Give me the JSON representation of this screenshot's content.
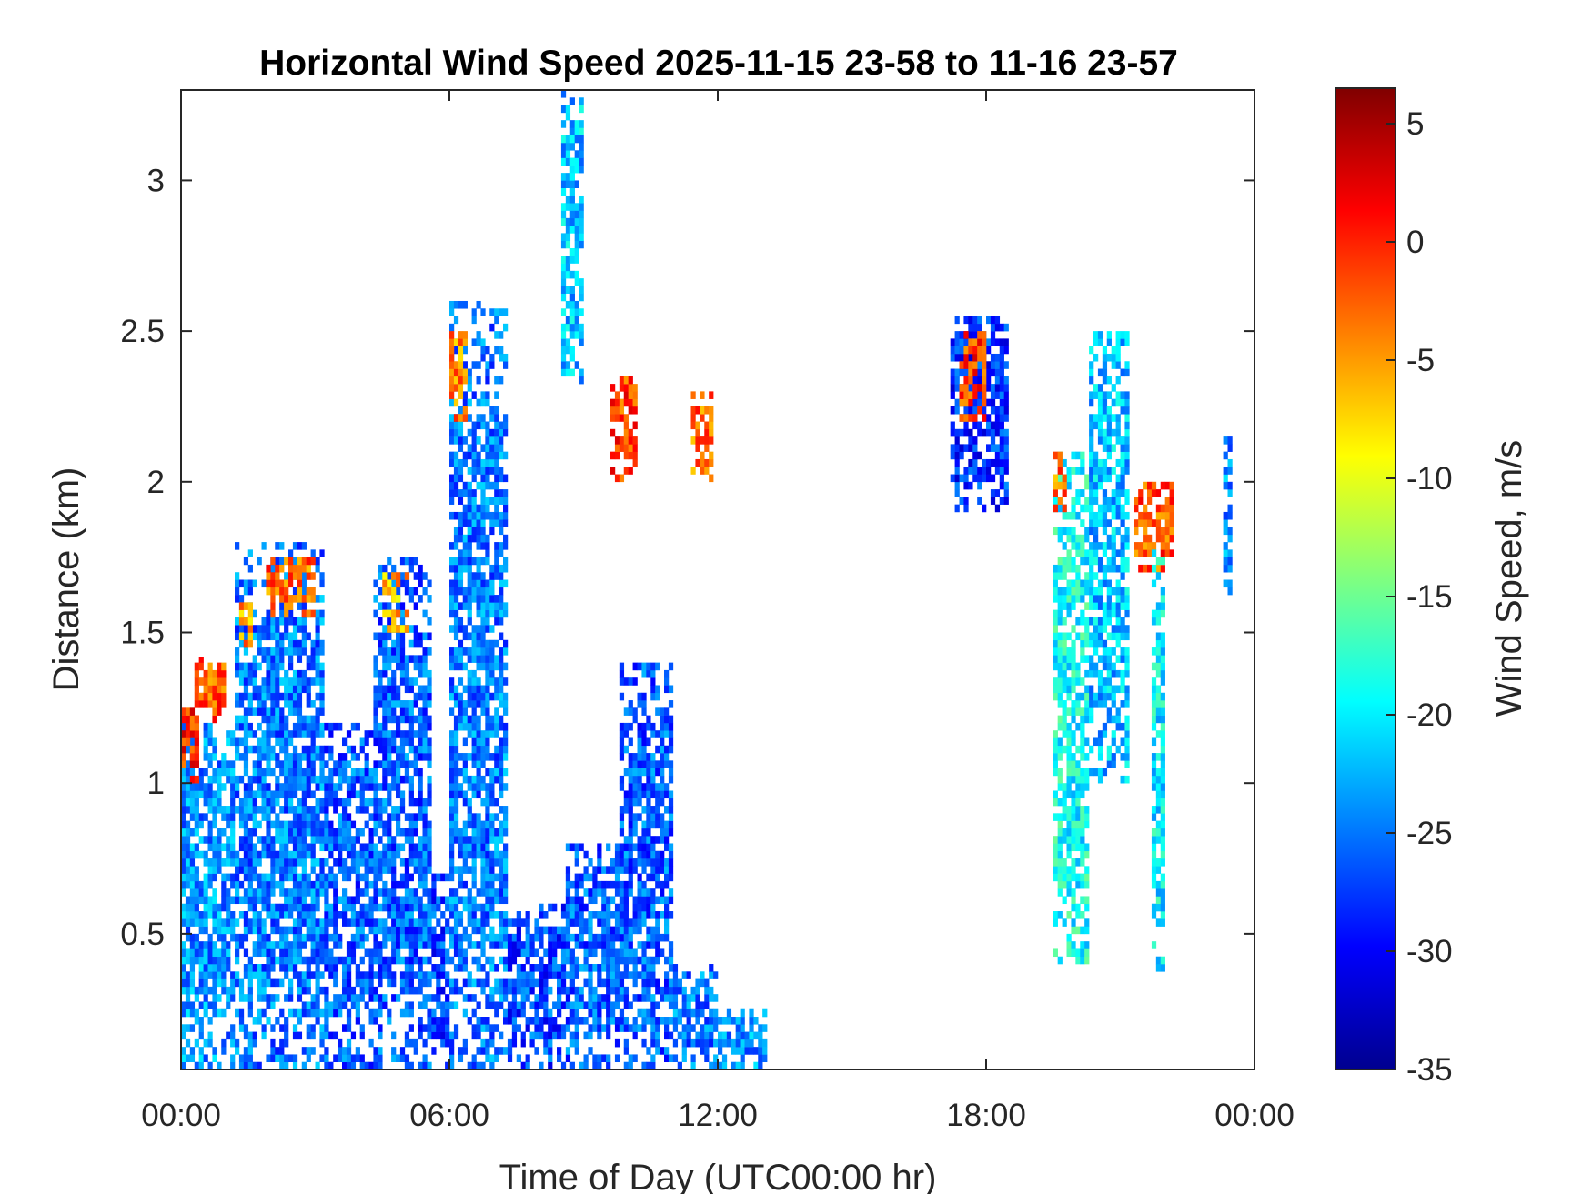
{
  "chart_data": {
    "type": "heatmap",
    "title": "Horizontal Wind Speed 2025-11-15 23-58 to 11-16 23-57",
    "xlabel": "Time of Day (UTC00:00 hr)",
    "ylabel": "Distance (km)",
    "x_unit": "hours",
    "xlim": [
      0,
      24
    ],
    "ylim": [
      0.05,
      3.3
    ],
    "x_ticks": [
      0,
      6,
      12,
      18,
      24
    ],
    "x_tick_labels": [
      "00:00",
      "06:00",
      "12:00",
      "18:00",
      "00:00"
    ],
    "y_ticks": [
      0.5,
      1,
      1.5,
      2,
      2.5,
      3
    ],
    "y_tick_labels": [
      "0.5",
      "1",
      "1.5",
      "2",
      "2.5",
      "3"
    ],
    "colorbar": {
      "label": "Wind Speed, m/s",
      "colormap": "jet",
      "clim": [
        -35,
        6.5
      ],
      "ticks": [
        5,
        0,
        -5,
        -10,
        -15,
        -20,
        -25,
        -30,
        -35
      ],
      "tick_labels": [
        "5",
        "0",
        "-5",
        "-10",
        "-15",
        "-20",
        "-25",
        "-30",
        "-35"
      ]
    },
    "grid": false,
    "cell_size": {
      "hours": 0.1,
      "km": 0.025
    },
    "segments": [
      {
        "t0": 0.0,
        "t1": 1.2,
        "h0": 0.05,
        "h1": 1.2,
        "v": -24
      },
      {
        "t0": 0.0,
        "t1": 0.4,
        "h0": 1.0,
        "h1": 1.25,
        "v": 0
      },
      {
        "t0": 0.3,
        "t1": 1.0,
        "h0": 1.2,
        "h1": 1.42,
        "v": -2
      },
      {
        "t0": 1.2,
        "t1": 3.2,
        "h0": 0.05,
        "h1": 1.8,
        "v": -25
      },
      {
        "t0": 1.9,
        "t1": 3.0,
        "h0": 1.55,
        "h1": 1.75,
        "v": -3
      },
      {
        "t0": 1.3,
        "t1": 1.6,
        "h0": 1.45,
        "h1": 1.6,
        "v": -5
      },
      {
        "t0": 3.2,
        "t1": 4.3,
        "h0": 0.05,
        "h1": 1.2,
        "v": -26
      },
      {
        "t0": 4.3,
        "t1": 5.6,
        "h0": 0.05,
        "h1": 1.75,
        "v": -26
      },
      {
        "t0": 4.5,
        "t1": 5.1,
        "h0": 1.5,
        "h1": 1.7,
        "v": -6
      },
      {
        "t0": 5.6,
        "t1": 6.0,
        "h0": 0.05,
        "h1": 0.7,
        "v": -27
      },
      {
        "t0": 6.0,
        "t1": 7.3,
        "h0": 0.05,
        "h1": 2.6,
        "v": -25
      },
      {
        "t0": 6.0,
        "t1": 6.4,
        "h0": 2.2,
        "h1": 2.5,
        "v": -4
      },
      {
        "t0": 7.3,
        "t1": 8.6,
        "h0": 0.05,
        "h1": 0.6,
        "v": -27
      },
      {
        "t0": 8.5,
        "t1": 9.0,
        "h0": 2.3,
        "h1": 3.3,
        "v": -22
      },
      {
        "t0": 8.6,
        "t1": 9.8,
        "h0": 0.05,
        "h1": 0.8,
        "v": -26
      },
      {
        "t0": 9.8,
        "t1": 11.0,
        "h0": 0.05,
        "h1": 1.4,
        "v": -26
      },
      {
        "t0": 9.6,
        "t1": 10.2,
        "h0": 2.0,
        "h1": 2.35,
        "v": -1
      },
      {
        "t0": 11.0,
        "t1": 12.0,
        "h0": 0.05,
        "h1": 0.4,
        "v": -25
      },
      {
        "t0": 11.4,
        "t1": 11.9,
        "h0": 2.0,
        "h1": 2.3,
        "v": -3
      },
      {
        "t0": 12.0,
        "t1": 13.1,
        "h0": 0.05,
        "h1": 0.25,
        "v": -24
      },
      {
        "t0": 17.2,
        "t1": 18.5,
        "h0": 1.9,
        "h1": 2.55,
        "v": -28
      },
      {
        "t0": 17.4,
        "t1": 18.0,
        "h0": 2.2,
        "h1": 2.5,
        "v": -1
      },
      {
        "t0": 19.5,
        "t1": 20.3,
        "h0": 0.4,
        "h1": 2.1,
        "v": -19
      },
      {
        "t0": 19.5,
        "t1": 19.8,
        "h0": 1.9,
        "h1": 2.1,
        "v": -3
      },
      {
        "t0": 20.3,
        "t1": 21.2,
        "h0": 1.0,
        "h1": 2.5,
        "v": -22
      },
      {
        "t0": 21.3,
        "t1": 22.2,
        "h0": 1.7,
        "h1": 2.0,
        "v": -2
      },
      {
        "t0": 21.7,
        "t1": 22.0,
        "h0": 0.3,
        "h1": 1.8,
        "v": -20
      },
      {
        "t0": 23.3,
        "t1": 23.5,
        "h0": 1.6,
        "h1": 2.2,
        "v": -24
      }
    ]
  }
}
